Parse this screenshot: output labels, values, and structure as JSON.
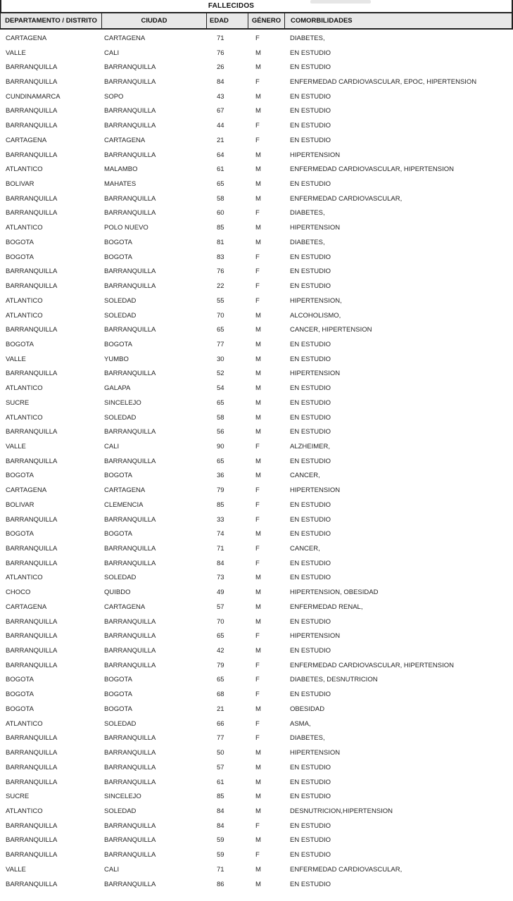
{
  "title": "FALLECIDOS",
  "columns": [
    "DEPARTAMENTO / DISTRITO",
    "CIUDAD",
    "EDAD",
    "GÉNERO",
    "COMORBILIDADES"
  ],
  "rows": [
    [
      "CARTAGENA",
      "CARTAGENA",
      71,
      "F",
      "DIABETES,"
    ],
    [
      "VALLE",
      "CALI",
      76,
      "M",
      "EN ESTUDIO"
    ],
    [
      "BARRANQUILLA",
      "BARRANQUILLA",
      26,
      "M",
      "EN ESTUDIO"
    ],
    [
      "BARRANQUILLA",
      "BARRANQUILLA",
      84,
      "F",
      "ENFERMEDAD CARDIOVASCULAR, EPOC, HIPERTENSION"
    ],
    [
      "CUNDINAMARCA",
      "SOPO",
      43,
      "M",
      "EN ESTUDIO"
    ],
    [
      "BARRANQUILLA",
      "BARRANQUILLA",
      67,
      "M",
      "EN ESTUDIO"
    ],
    [
      "BARRANQUILLA",
      "BARRANQUILLA",
      44,
      "F",
      "EN ESTUDIO"
    ],
    [
      "CARTAGENA",
      "CARTAGENA",
      21,
      "F",
      "EN ESTUDIO"
    ],
    [
      "BARRANQUILLA",
      "BARRANQUILLA",
      64,
      "M",
      "HIPERTENSION"
    ],
    [
      "ATLANTICO",
      "MALAMBO",
      61,
      "M",
      "ENFERMEDAD CARDIOVASCULAR, HIPERTENSION"
    ],
    [
      "BOLIVAR",
      "MAHATES",
      65,
      "M",
      "EN ESTUDIO"
    ],
    [
      "BARRANQUILLA",
      "BARRANQUILLA",
      58,
      "M",
      "ENFERMEDAD CARDIOVASCULAR,"
    ],
    [
      "BARRANQUILLA",
      "BARRANQUILLA",
      60,
      "F",
      "DIABETES,"
    ],
    [
      "ATLANTICO",
      "POLO NUEVO",
      85,
      "M",
      "HIPERTENSION"
    ],
    [
      "BOGOTA",
      "BOGOTA",
      81,
      "M",
      "DIABETES,"
    ],
    [
      "BOGOTA",
      "BOGOTA",
      83,
      "F",
      "EN ESTUDIO"
    ],
    [
      "BARRANQUILLA",
      "BARRANQUILLA",
      76,
      "F",
      "EN ESTUDIO"
    ],
    [
      "BARRANQUILLA",
      "BARRANQUILLA",
      22,
      "F",
      "EN ESTUDIO"
    ],
    [
      "ATLANTICO",
      "SOLEDAD",
      55,
      "F",
      "HIPERTENSION,"
    ],
    [
      "ATLANTICO",
      "SOLEDAD",
      70,
      "M",
      "ALCOHOLISMO,"
    ],
    [
      "BARRANQUILLA",
      "BARRANQUILLA",
      65,
      "M",
      "CANCER, HIPERTENSION"
    ],
    [
      "BOGOTA",
      "BOGOTA",
      77,
      "M",
      "EN ESTUDIO"
    ],
    [
      "VALLE",
      "YUMBO",
      30,
      "M",
      "EN ESTUDIO"
    ],
    [
      "BARRANQUILLA",
      "BARRANQUILLA",
      52,
      "M",
      "HIPERTENSION"
    ],
    [
      "ATLANTICO",
      "GALAPA",
      54,
      "M",
      "EN ESTUDIO"
    ],
    [
      "SUCRE",
      "SINCELEJO",
      65,
      "M",
      "EN ESTUDIO"
    ],
    [
      "ATLANTICO",
      "SOLEDAD",
      58,
      "M",
      "EN ESTUDIO"
    ],
    [
      "BARRANQUILLA",
      "BARRANQUILLA",
      56,
      "M",
      "EN ESTUDIO"
    ],
    [
      "VALLE",
      "CALI",
      90,
      "F",
      "ALZHEIMER,"
    ],
    [
      "BARRANQUILLA",
      "BARRANQUILLA",
      65,
      "M",
      "EN ESTUDIO"
    ],
    [
      "BOGOTA",
      "BOGOTA",
      36,
      "M",
      "CANCER,"
    ],
    [
      "CARTAGENA",
      "CARTAGENA",
      79,
      "F",
      "HIPERTENSION"
    ],
    [
      "BOLIVAR",
      "CLEMENCIA",
      85,
      "F",
      "EN ESTUDIO"
    ],
    [
      "BARRANQUILLA",
      "BARRANQUILLA",
      33,
      "F",
      "EN ESTUDIO"
    ],
    [
      "BOGOTA",
      "BOGOTA",
      74,
      "M",
      "EN ESTUDIO"
    ],
    [
      "BARRANQUILLA",
      "BARRANQUILLA",
      71,
      "F",
      "CANCER,"
    ],
    [
      "BARRANQUILLA",
      "BARRANQUILLA",
      84,
      "F",
      "EN ESTUDIO"
    ],
    [
      "ATLANTICO",
      "SOLEDAD",
      73,
      "M",
      "EN ESTUDIO"
    ],
    [
      "CHOCO",
      "QUIBDO",
      49,
      "M",
      "HIPERTENSION, OBESIDAD"
    ],
    [
      "CARTAGENA",
      "CARTAGENA",
      57,
      "M",
      "ENFERMEDAD RENAL,"
    ],
    [
      "BARRANQUILLA",
      "BARRANQUILLA",
      70,
      "M",
      "EN ESTUDIO"
    ],
    [
      "BARRANQUILLA",
      "BARRANQUILLA",
      65,
      "F",
      "HIPERTENSION"
    ],
    [
      "BARRANQUILLA",
      "BARRANQUILLA",
      42,
      "M",
      "EN ESTUDIO"
    ],
    [
      "BARRANQUILLA",
      "BARRANQUILLA",
      79,
      "F",
      "ENFERMEDAD CARDIOVASCULAR, HIPERTENSION"
    ],
    [
      "BOGOTA",
      "BOGOTA",
      65,
      "F",
      "DIABETES, DESNUTRICION"
    ],
    [
      "BOGOTA",
      "BOGOTA",
      68,
      "F",
      "EN ESTUDIO"
    ],
    [
      "BOGOTA",
      "BOGOTA",
      21,
      "M",
      "OBESIDAD"
    ],
    [
      "ATLANTICO",
      "SOLEDAD",
      66,
      "F",
      "ASMA,"
    ],
    [
      "BARRANQUILLA",
      "BARRANQUILLA",
      77,
      "F",
      "DIABETES,"
    ],
    [
      "BARRANQUILLA",
      "BARRANQUILLA",
      50,
      "M",
      "HIPERTENSION"
    ],
    [
      "BARRANQUILLA",
      "BARRANQUILLA",
      57,
      "M",
      "EN ESTUDIO"
    ],
    [
      "BARRANQUILLA",
      "BARRANQUILLA",
      61,
      "M",
      "EN ESTUDIO"
    ],
    [
      "SUCRE",
      "SINCELEJO",
      85,
      "M",
      "EN ESTUDIO"
    ],
    [
      "ATLANTICO",
      "SOLEDAD",
      84,
      "M",
      "DESNUTRICION,HIPERTENSION"
    ],
    [
      "BARRANQUILLA",
      "BARRANQUILLA",
      84,
      "F",
      "EN ESTUDIO"
    ],
    [
      "BARRANQUILLA",
      "BARRANQUILLA",
      59,
      "M",
      "EN ESTUDIO"
    ],
    [
      "BARRANQUILLA",
      "BARRANQUILLA",
      59,
      "F",
      "EN ESTUDIO"
    ],
    [
      "VALLE",
      "CALI",
      71,
      "M",
      "ENFERMEDAD CARDIOVASCULAR,"
    ],
    [
      "BARRANQUILLA",
      "BARRANQUILLA",
      86,
      "M",
      "EN ESTUDIO"
    ]
  ]
}
